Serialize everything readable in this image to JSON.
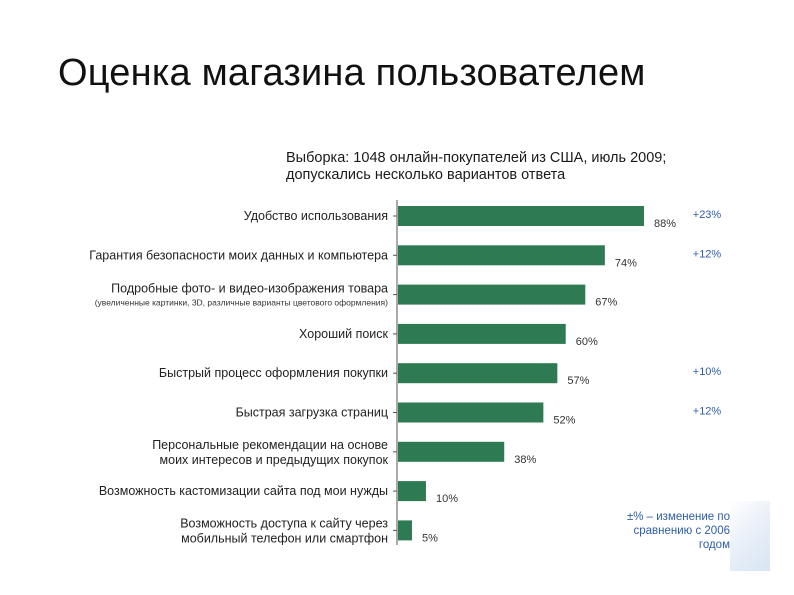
{
  "title": "Оценка магазина пользователем",
  "subtitle_line1": "Выборка: 1048 онлайн-покупателей из США, июль 2009;",
  "subtitle_line2": "допускались несколько вариантов ответа",
  "legend_note": "±% – изменение по сравнению с 2006 годом",
  "colors": {
    "bar": "#2e7a52",
    "change": "#2e5ea8",
    "axis": "#555555"
  },
  "chart_data": {
    "type": "bar",
    "orientation": "horizontal",
    "xlim": [
      0,
      100
    ],
    "grid": false,
    "categories": [
      {
        "label": [
          "Удобство использования"
        ],
        "value": 88,
        "value_label": "88%",
        "change": "+23%"
      },
      {
        "label": [
          "Гарантия безопасности моих данных и компьютера"
        ],
        "value": 74,
        "value_label": "74%",
        "change": "+12%"
      },
      {
        "label": [
          "Подробные фото- и видео-изображения товара"
        ],
        "sublabel": "(увеличенные картинки, 3D, различные варианты цветового оформления)",
        "value": 67,
        "value_label": "67%",
        "change": ""
      },
      {
        "label": [
          "Хороший поиск"
        ],
        "value": 60,
        "value_label": "60%",
        "change": ""
      },
      {
        "label": [
          "Быстрый процесс оформления покупки"
        ],
        "value": 57,
        "value_label": "57%",
        "change": "+10%"
      },
      {
        "label": [
          "Быстрая загрузка страниц"
        ],
        "value": 52,
        "value_label": "52%",
        "change": "+12%"
      },
      {
        "label": [
          "Персональные рекомендации на основе",
          "моих интересов и предыдущих покупок"
        ],
        "value": 38,
        "value_label": "38%",
        "change": ""
      },
      {
        "label": [
          "Возможность кастомизации сайта под мои нужды"
        ],
        "value": 10,
        "value_label": "10%",
        "change": ""
      },
      {
        "label": [
          "Возможность доступа к сайту через",
          "мобильный телефон или смартфон"
        ],
        "value": 5,
        "value_label": "5%",
        "change": ""
      }
    ]
  }
}
